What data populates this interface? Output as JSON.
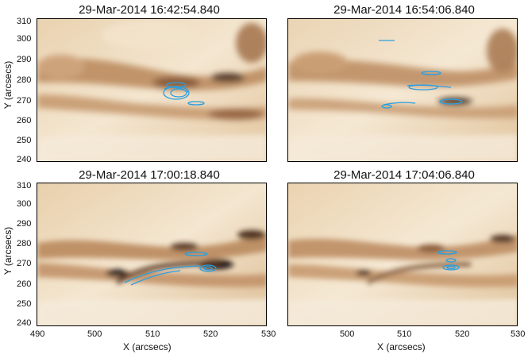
{
  "figure": {
    "panels": [
      {
        "title": "29-Mar-2014 16:42:54.840"
      },
      {
        "title": "29-Mar-2014 16:54:06.840"
      },
      {
        "title": "29-Mar-2014 17:00:18.840"
      },
      {
        "title": "29-Mar-2014 17:04:06.840"
      }
    ],
    "x_ticks": [
      "490",
      "500",
      "510",
      "520",
      "530"
    ],
    "y_ticks": [
      "310",
      "300",
      "290",
      "280",
      "270",
      "260",
      "250",
      "240"
    ],
    "xlabel": "X (arcsecs)",
    "ylabel": "Y (arcsecs)",
    "colors": {
      "background_light": "#f3e6d2",
      "background_mid": "#d9b48a",
      "background_dark": "#6b3e1c",
      "contour": "#2a9fe0"
    }
  }
}
